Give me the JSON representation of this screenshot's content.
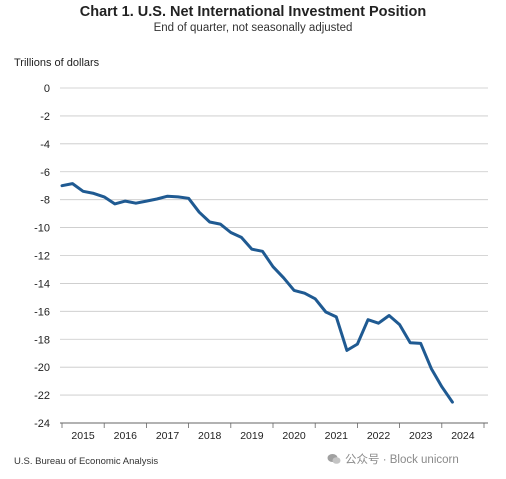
{
  "chart_data": {
    "type": "line",
    "title": "Chart 1. U.S. Net International Investment Position",
    "subtitle": "End of quarter, not seasonally adjusted",
    "ylabel": "Trillions of dollars",
    "xlabel": "",
    "ylim": [
      -24,
      0
    ],
    "yticks": [
      0,
      -2,
      -4,
      -6,
      -8,
      -10,
      -12,
      -14,
      -16,
      -18,
      -20,
      -22,
      -24
    ],
    "xticks": [
      "2015",
      "2016",
      "2017",
      "2018",
      "2019",
      "2020",
      "2021",
      "2022",
      "2023",
      "2024"
    ],
    "grid": true,
    "series_color": "#1f5a92",
    "series": [
      {
        "x": [
          "2014Q4",
          "2015Q1",
          "2015Q2",
          "2015Q3",
          "2015Q4",
          "2016Q1",
          "2016Q2",
          "2016Q3",
          "2016Q4",
          "2017Q1",
          "2017Q2",
          "2017Q3",
          "2017Q4",
          "2018Q1",
          "2018Q2",
          "2018Q3",
          "2018Q4",
          "2019Q1",
          "2019Q2",
          "2019Q3",
          "2019Q4",
          "2020Q1",
          "2020Q2",
          "2020Q3",
          "2020Q4",
          "2021Q1",
          "2021Q2",
          "2021Q3",
          "2021Q4",
          "2022Q1",
          "2022Q2",
          "2022Q3",
          "2022Q4",
          "2023Q1",
          "2023Q2",
          "2023Q3",
          "2023Q4",
          "2024Q1",
          "2024Q2"
        ],
        "values": [
          -7.0,
          -7.0,
          -6.85,
          -7.4,
          -7.55,
          -7.8,
          -8.3,
          -8.1,
          -8.25,
          -8.1,
          -7.95,
          -7.75,
          -7.8,
          -7.9,
          -8.9,
          -9.6,
          -9.75,
          -10.35,
          -10.7,
          -11.55,
          -11.7,
          -12.8,
          -13.6,
          -14.5,
          -14.7,
          -15.1,
          -16.05,
          -16.4,
          -18.8,
          -18.35,
          -16.6,
          -16.85,
          -16.3,
          -16.95,
          -18.25,
          -18.3,
          -20.1,
          -21.4,
          -22.5
        ]
      }
    ]
  },
  "source": "U.S. Bureau of Economic Analysis",
  "watermark": "公众号 · Block unicorn"
}
